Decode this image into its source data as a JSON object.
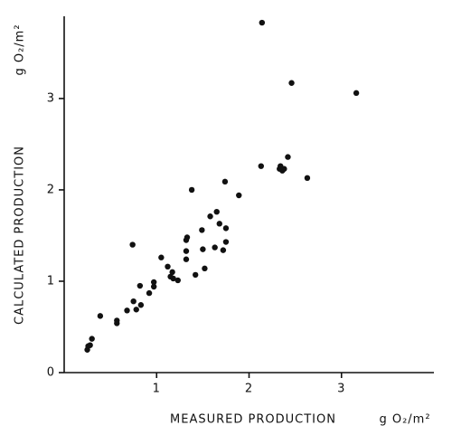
{
  "chart_data": {
    "type": "scatter",
    "x_label": "MEASURED PRODUCTION",
    "x_unit": "g O₂/m²",
    "y_label": "CALCULATED PRODUCTION",
    "y_unit": "g O₂/m²",
    "xlim": [
      0,
      4
    ],
    "ylim": [
      0,
      3.9
    ],
    "xticks": [
      1,
      2,
      3
    ],
    "yticks": [
      0,
      1,
      2,
      3
    ],
    "color": "#111111",
    "x": [
      0.25,
      0.26,
      0.28,
      0.3,
      0.39,
      0.57,
      0.57,
      0.68,
      0.74,
      0.75,
      0.78,
      0.83,
      0.82,
      0.92,
      0.97,
      0.97,
      1.05,
      1.12,
      1.15,
      1.17,
      1.18,
      1.23,
      1.32,
      1.32,
      1.33,
      1.32,
      1.38,
      1.42,
      1.49,
      1.5,
      1.52,
      1.58,
      1.63,
      1.65,
      1.68,
      1.72,
      1.74,
      1.75,
      1.75,
      1.89,
      2.13,
      2.14,
      2.33,
      2.34,
      2.36,
      2.38,
      2.42,
      2.46,
      2.63,
      3.16
    ],
    "y": [
      0.25,
      0.29,
      0.3,
      0.37,
      0.62,
      0.54,
      0.57,
      0.68,
      1.4,
      0.78,
      0.69,
      0.74,
      0.95,
      0.87,
      0.99,
      0.94,
      1.26,
      1.16,
      1.05,
      1.1,
      1.03,
      1.01,
      1.33,
      1.45,
      1.48,
      1.24,
      2.0,
      1.07,
      1.56,
      1.35,
      1.14,
      1.71,
      1.37,
      1.76,
      1.63,
      1.34,
      2.09,
      1.58,
      1.43,
      1.94,
      2.26,
      3.83,
      2.23,
      2.26,
      2.21,
      2.23,
      2.36,
      3.17,
      2.13,
      3.06
    ]
  }
}
